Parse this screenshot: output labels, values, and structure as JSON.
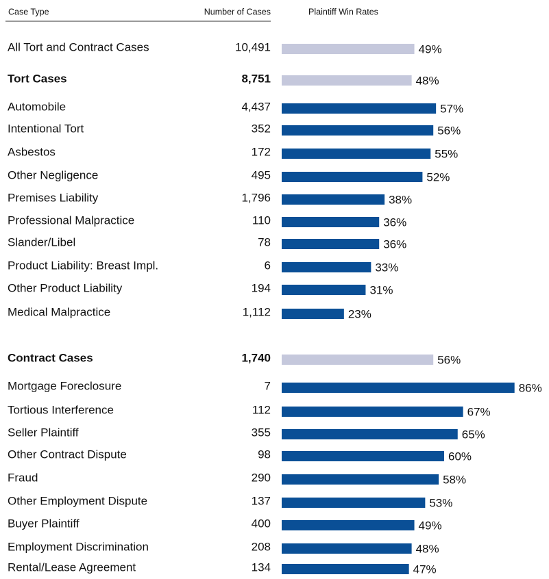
{
  "chart_data": {
    "type": "bar",
    "headers": [
      "Case Type",
      "Number of Cases",
      "Plaintiff Win Rates"
    ],
    "categories": [
      "All Tort and Contract Cases",
      "Tort Cases",
      "Automobile",
      "Intentional Tort",
      "Asbestos",
      "Other Negligence",
      "Premises Liability",
      "Professional Malpractice",
      "Slander/Libel",
      "Product Liability: Breast Impl.",
      "Other Product Liability",
      "Medical Malpractice",
      "Contract Cases",
      "Mortgage Foreclosure",
      "Tortious Interference",
      "Seller Plaintiff",
      "Other Contract Dispute",
      "Fraud",
      "Other Employment Dispute",
      "Buyer Plaintiff",
      "Employment Discrimination",
      "Rental/Lease Agreement"
    ],
    "cases": [
      "10,491",
      "8,751",
      "4,437",
      "352",
      "172",
      "495",
      "1,796",
      "110",
      "78",
      "6",
      "194",
      "1,112",
      "1,740",
      "7",
      "112",
      "355",
      "98",
      "290",
      "137",
      "400",
      "208",
      "134"
    ],
    "values": [
      49,
      48,
      57,
      56,
      55,
      52,
      38,
      36,
      36,
      33,
      31,
      23,
      56,
      86,
      67,
      65,
      60,
      58,
      53,
      49,
      48,
      47
    ],
    "value_labels": [
      "49%",
      "48%",
      "57%",
      "56%",
      "55%",
      "52%",
      "38%",
      "36%",
      "36%",
      "33%",
      "31%",
      "23%",
      "56%",
      "86%",
      "67%",
      "65%",
      "60%",
      "58%",
      "53%",
      "49%",
      "48%",
      "47%"
    ],
    "colors": [
      "#c5c8dc",
      "#c5c8dc",
      "#0a4f96",
      "#0a4f96",
      "#0a4f96",
      "#0a4f96",
      "#0a4f96",
      "#0a4f96",
      "#0a4f96",
      "#0a4f96",
      "#0a4f96",
      "#0a4f96",
      "#c5c8dc",
      "#0a4f96",
      "#0a4f96",
      "#0a4f96",
      "#0a4f96",
      "#0a4f96",
      "#0a4f96",
      "#0a4f96",
      "#0a4f96",
      "#0a4f96"
    ],
    "bold": [
      false,
      true,
      false,
      false,
      false,
      false,
      false,
      false,
      false,
      false,
      false,
      false,
      true,
      false,
      false,
      false,
      false,
      false,
      false,
      false,
      false,
      false
    ]
  }
}
